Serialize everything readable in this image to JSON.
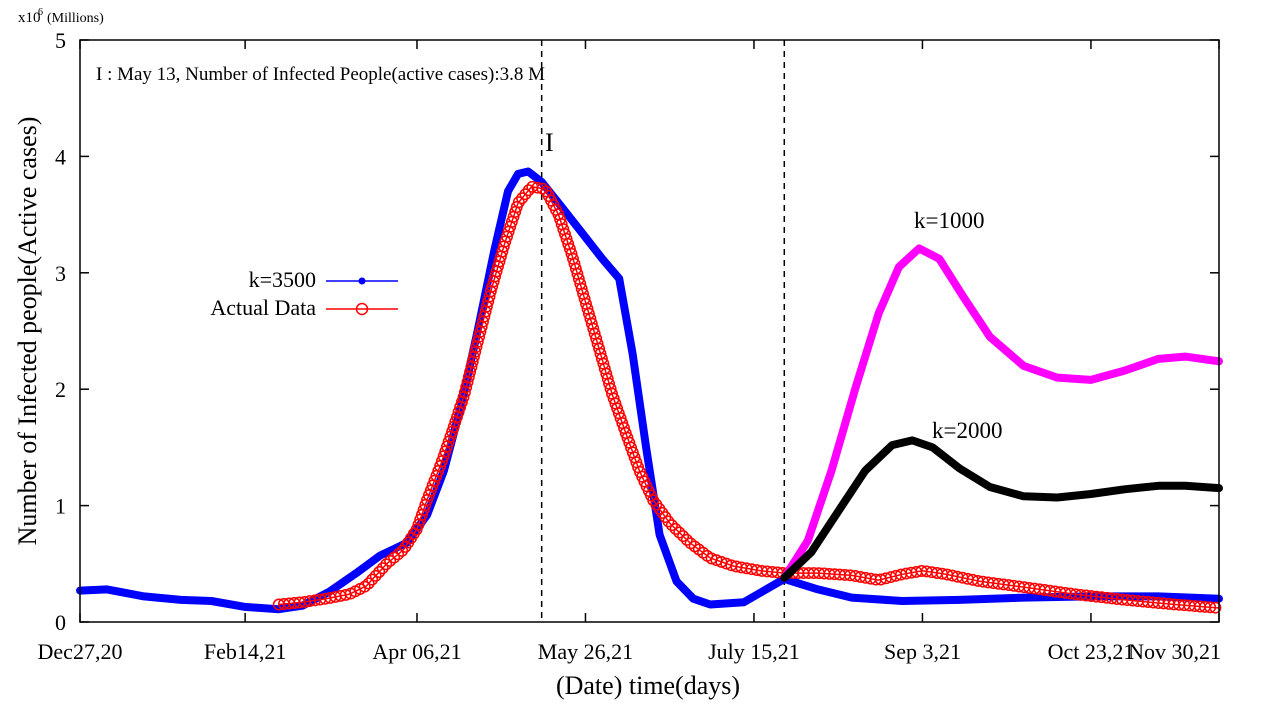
{
  "chart_data": {
    "type": "line",
    "title": "",
    "xlabel": "(Date) time(days)",
    "ylabel": "Number of Infected people(Active cases)",
    "y_multiplier": {
      "base": "x10",
      "exponent": "6",
      "unit": "(Millions)"
    },
    "xlim": [
      "2020-12-27",
      "2021-11-30"
    ],
    "ylim": [
      0,
      5
    ],
    "x_ticks": [
      {
        "date": "2020-12-27",
        "label": "Dec27,20"
      },
      {
        "date": "2021-02-14",
        "label": "Feb14,21"
      },
      {
        "date": "2021-04-06",
        "label": "Apr 06,21"
      },
      {
        "date": "2021-05-26",
        "label": "May 26,21"
      },
      {
        "date": "2021-07-15",
        "label": "July 15,21"
      },
      {
        "date": "2021-09-03",
        "label": "Sep 3,21"
      },
      {
        "date": "2021-10-23",
        "label": "Oct 23,21"
      },
      {
        "date": "2021-11-30",
        "label": "Nov 30,21"
      }
    ],
    "y_ticks": [
      0,
      1,
      2,
      3,
      4,
      5
    ],
    "grid": false,
    "legend_position": "center-left",
    "annotation": "I : May 13, Number of Infected People(active cases):3.8 M",
    "peak_marker": {
      "label": "I",
      "date": "2021-05-13"
    },
    "vertical_lines": [
      "2021-05-13",
      "2021-07-24"
    ],
    "series": [
      {
        "name": "k=3500",
        "color": "#0000ff",
        "style": "thick-line",
        "points": [
          [
            "2020-12-27",
            0.27
          ],
          [
            "2021-01-04",
            0.28
          ],
          [
            "2021-01-15",
            0.22
          ],
          [
            "2021-01-26",
            0.19
          ],
          [
            "2021-02-04",
            0.18
          ],
          [
            "2021-02-14",
            0.13
          ],
          [
            "2021-02-24",
            0.11
          ],
          [
            "2021-03-03",
            0.14
          ],
          [
            "2021-03-11",
            0.26
          ],
          [
            "2021-03-19",
            0.42
          ],
          [
            "2021-03-26",
            0.57
          ],
          [
            "2021-04-03",
            0.68
          ],
          [
            "2021-04-09",
            0.92
          ],
          [
            "2021-04-14",
            1.3
          ],
          [
            "2021-04-19",
            1.85
          ],
          [
            "2021-04-24",
            2.5
          ],
          [
            "2021-04-29",
            3.2
          ],
          [
            "2021-05-03",
            3.7
          ],
          [
            "2021-05-06",
            3.85
          ],
          [
            "2021-05-09",
            3.87
          ],
          [
            "2021-05-13",
            3.78
          ],
          [
            "2021-05-18",
            3.6
          ],
          [
            "2021-05-24",
            3.38
          ],
          [
            "2021-05-31",
            3.12
          ],
          [
            "2021-06-05",
            2.95
          ],
          [
            "2021-06-09",
            2.3
          ],
          [
            "2021-06-13",
            1.5
          ],
          [
            "2021-06-17",
            0.75
          ],
          [
            "2021-06-22",
            0.35
          ],
          [
            "2021-06-27",
            0.2
          ],
          [
            "2021-07-02",
            0.15
          ],
          [
            "2021-07-12",
            0.17
          ],
          [
            "2021-07-24",
            0.37
          ],
          [
            "2021-08-03",
            0.28
          ],
          [
            "2021-08-13",
            0.21
          ],
          [
            "2021-08-28",
            0.18
          ],
          [
            "2021-09-14",
            0.19
          ],
          [
            "2021-10-03",
            0.21
          ],
          [
            "2021-10-23",
            0.22
          ],
          [
            "2021-11-12",
            0.22
          ],
          [
            "2021-11-30",
            0.2
          ]
        ]
      },
      {
        "name": "Actual Data",
        "color": "#ff0000",
        "style": "circles-line",
        "points": [
          [
            "2021-02-24",
            0.15
          ],
          [
            "2021-03-03",
            0.17
          ],
          [
            "2021-03-10",
            0.2
          ],
          [
            "2021-03-17",
            0.24
          ],
          [
            "2021-03-22",
            0.31
          ],
          [
            "2021-03-28",
            0.5
          ],
          [
            "2021-04-02",
            0.62
          ],
          [
            "2021-04-06",
            0.8
          ],
          [
            "2021-04-09",
            1.05
          ],
          [
            "2021-04-13",
            1.35
          ],
          [
            "2021-04-16",
            1.6
          ],
          [
            "2021-04-20",
            1.95
          ],
          [
            "2021-04-24",
            2.4
          ],
          [
            "2021-04-28",
            2.85
          ],
          [
            "2021-05-02",
            3.25
          ],
          [
            "2021-05-06",
            3.6
          ],
          [
            "2021-05-10",
            3.74
          ],
          [
            "2021-05-14",
            3.72
          ],
          [
            "2021-05-18",
            3.5
          ],
          [
            "2021-05-22",
            3.15
          ],
          [
            "2021-05-26",
            2.75
          ],
          [
            "2021-05-30",
            2.35
          ],
          [
            "2021-06-03",
            1.95
          ],
          [
            "2021-06-07",
            1.62
          ],
          [
            "2021-06-11",
            1.3
          ],
          [
            "2021-06-15",
            1.05
          ],
          [
            "2021-06-20",
            0.85
          ],
          [
            "2021-06-26",
            0.68
          ],
          [
            "2021-07-02",
            0.55
          ],
          [
            "2021-07-09",
            0.48
          ],
          [
            "2021-07-17",
            0.44
          ],
          [
            "2021-07-24",
            0.42
          ],
          [
            "2021-08-03",
            0.42
          ],
          [
            "2021-08-13",
            0.4
          ],
          [
            "2021-08-21",
            0.36
          ],
          [
            "2021-08-28",
            0.41
          ],
          [
            "2021-09-03",
            0.44
          ],
          [
            "2021-09-10",
            0.41
          ],
          [
            "2021-09-20",
            0.35
          ],
          [
            "2021-10-03",
            0.3
          ],
          [
            "2021-10-18",
            0.24
          ],
          [
            "2021-11-02",
            0.19
          ],
          [
            "2021-11-17",
            0.15
          ],
          [
            "2021-11-30",
            0.12
          ]
        ]
      },
      {
        "name": "k=1000",
        "color": "#ff00ff",
        "style": "thick-line",
        "points": [
          [
            "2021-07-24",
            0.38
          ],
          [
            "2021-07-31",
            0.7
          ],
          [
            "2021-08-07",
            1.3
          ],
          [
            "2021-08-14",
            2.0
          ],
          [
            "2021-08-21",
            2.65
          ],
          [
            "2021-08-27",
            3.05
          ],
          [
            "2021-09-02",
            3.21
          ],
          [
            "2021-09-08",
            3.12
          ],
          [
            "2021-09-15",
            2.8
          ],
          [
            "2021-09-23",
            2.45
          ],
          [
            "2021-10-03",
            2.2
          ],
          [
            "2021-10-13",
            2.1
          ],
          [
            "2021-10-23",
            2.08
          ],
          [
            "2021-11-02",
            2.16
          ],
          [
            "2021-11-12",
            2.26
          ],
          [
            "2021-11-20",
            2.28
          ],
          [
            "2021-11-30",
            2.24
          ]
        ]
      },
      {
        "name": "k=2000",
        "color": "#000000",
        "style": "thick-line",
        "points": [
          [
            "2021-07-24",
            0.38
          ],
          [
            "2021-08-01",
            0.6
          ],
          [
            "2021-08-09",
            0.95
          ],
          [
            "2021-08-17",
            1.3
          ],
          [
            "2021-08-25",
            1.52
          ],
          [
            "2021-08-31",
            1.56
          ],
          [
            "2021-09-06",
            1.5
          ],
          [
            "2021-09-14",
            1.32
          ],
          [
            "2021-09-23",
            1.16
          ],
          [
            "2021-10-03",
            1.08
          ],
          [
            "2021-10-13",
            1.07
          ],
          [
            "2021-10-23",
            1.1
          ],
          [
            "2021-11-02",
            1.14
          ],
          [
            "2021-11-12",
            1.17
          ],
          [
            "2021-11-20",
            1.17
          ],
          [
            "2021-11-30",
            1.15
          ]
        ]
      }
    ],
    "curve_labels": [
      "k=1000",
      "k=2000"
    ]
  }
}
